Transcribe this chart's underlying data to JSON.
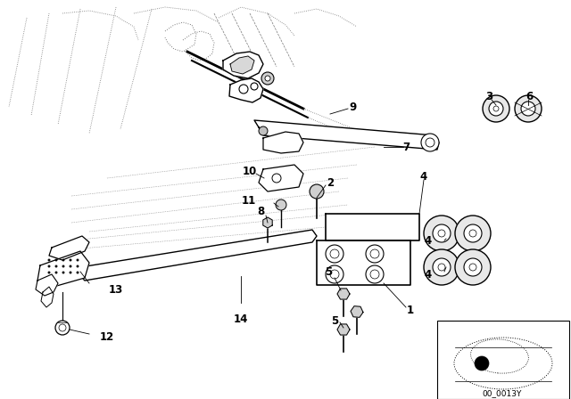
{
  "bg_color": "#ffffff",
  "diagram_code": "00_0013Y",
  "line_color": "#000000",
  "label_fs": 8.5,
  "small_fs": 6.5
}
